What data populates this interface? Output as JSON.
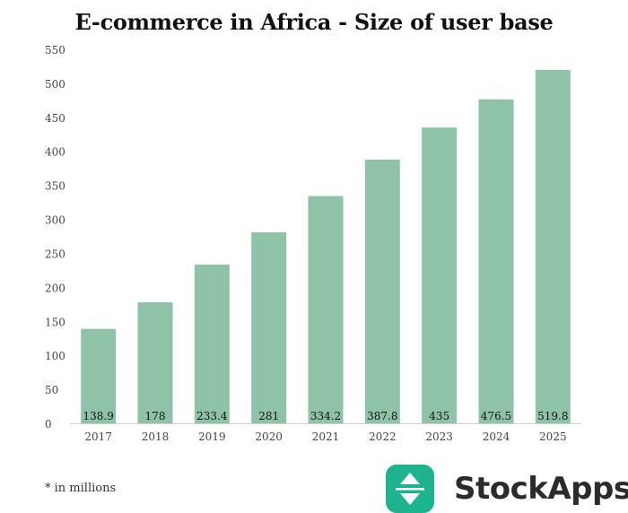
{
  "colors": {
    "bar": "#8fc3a7",
    "axis": "#cccccc",
    "brand": "#1db38f"
  },
  "footnote": "* in millions",
  "brand": {
    "name": "StockApps",
    "icon": "up-down-arrows-icon"
  },
  "chart_data": {
    "type": "bar",
    "title": "E-commerce in Africa - Size of user base",
    "xlabel": "",
    "ylabel": "",
    "ylim": [
      0,
      550
    ],
    "yticks": [
      0,
      50,
      100,
      150,
      200,
      250,
      300,
      350,
      400,
      450,
      500,
      550
    ],
    "categories": [
      "2017",
      "2018",
      "2019",
      "2020",
      "2021",
      "2022",
      "2023",
      "2024",
      "2025"
    ],
    "values": [
      138.9,
      178,
      233.4,
      281,
      334.2,
      387.8,
      435,
      476.5,
      519.8
    ],
    "data_labels": [
      "138.9",
      "178",
      "233.4",
      "281",
      "334.2",
      "387.8",
      "435",
      "476.5",
      "519.8"
    ],
    "grid": false,
    "legend": "none"
  }
}
